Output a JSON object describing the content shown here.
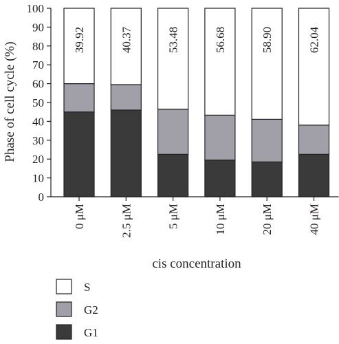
{
  "chart_data": {
    "type": "bar",
    "stacked": true,
    "categories": [
      "0 μM",
      "2.5 μM",
      "5 μM",
      "10 μM",
      "20 μM",
      "40 μM"
    ],
    "series": [
      {
        "name": "G1",
        "values": [
          45.0,
          46.0,
          22.5,
          19.5,
          18.5,
          22.5
        ],
        "color": "#3a3a3a"
      },
      {
        "name": "G2",
        "values": [
          15.0,
          13.5,
          24.0,
          23.8,
          22.6,
          15.5
        ],
        "color": "#a1a0a8"
      },
      {
        "name": "S",
        "values": [
          40.0,
          40.5,
          53.5,
          56.7,
          58.9,
          62.0
        ],
        "color": "#ffffff"
      }
    ],
    "bar_labels": [
      "39.92",
      "40.37",
      "53.48",
      "56.68",
      "58.90",
      "62.04"
    ],
    "xlabel": "cis concentration",
    "ylabel": "Phase of cell cycle (%)",
    "ylim": [
      0,
      100
    ],
    "yticks": [
      0,
      10,
      20,
      30,
      40,
      50,
      60,
      70,
      80,
      90,
      100
    ],
    "legend_position": "bottom-left",
    "legend": [
      {
        "label": "S",
        "color": "#ffffff"
      },
      {
        "label": "G2",
        "color": "#a1a0a8"
      },
      {
        "label": "G1",
        "color": "#3a3a3a"
      }
    ],
    "grid": false
  }
}
